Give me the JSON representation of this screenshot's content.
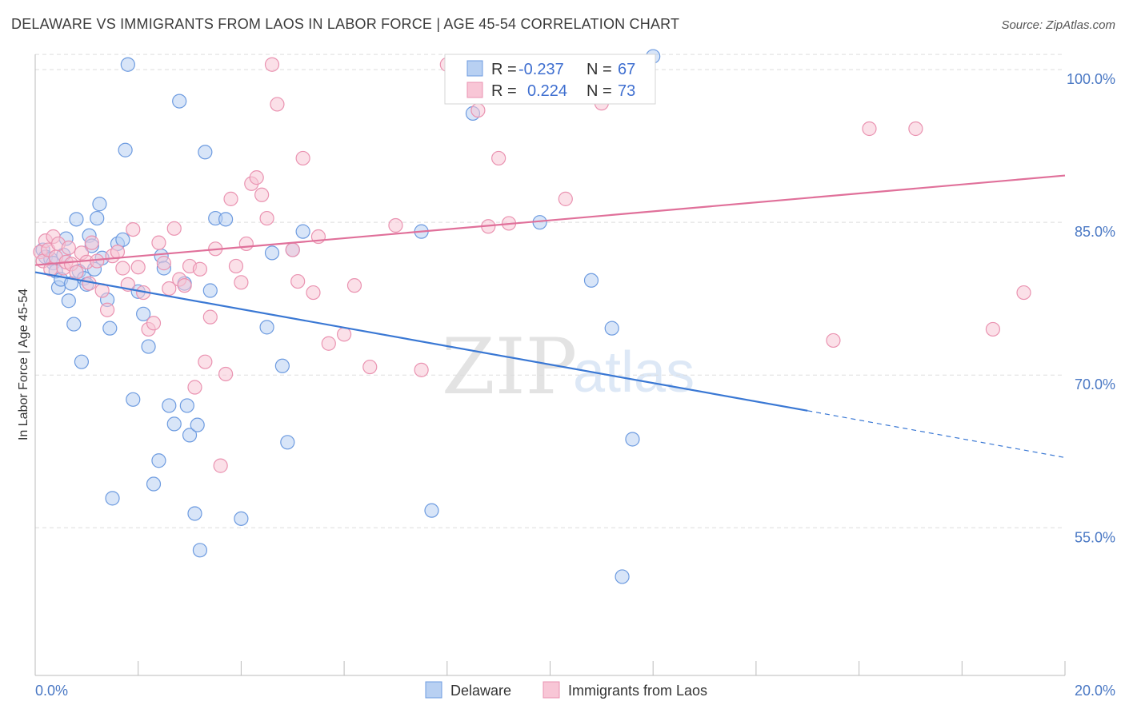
{
  "header": {
    "title": "DELAWARE VS IMMIGRANTS FROM LAOS IN LABOR FORCE | AGE 45-54 CORRELATION CHART",
    "source": "Source: ZipAtlas.com"
  },
  "watermark": {
    "zip": "ZIP",
    "atlas": "atlas"
  },
  "legend": {
    "delaware": {
      "r_label": "R =",
      "r_value": "-0.237",
      "n_label": "N =",
      "n_value": "67"
    },
    "laos": {
      "r_label": "R =",
      "r_value": "0.224",
      "n_label": "N =",
      "n_value": "73"
    }
  },
  "bottom_legend": {
    "delaware": "Delaware",
    "laos": "Immigrants from Laos"
  },
  "colors": {
    "delaware_fill": "#b8d0f2",
    "delaware_stroke": "#6d9be0",
    "delaware_line": "#3a78d4",
    "laos_fill": "#f8c6d6",
    "laos_stroke": "#ea93b1",
    "laos_line": "#e0709a",
    "tick_text": "#4a78c4",
    "grid": "#dddddd"
  },
  "chart_data": {
    "type": "scatter",
    "title": "DELAWARE VS IMMIGRANTS FROM LAOS IN LABOR FORCE | AGE 45-54 CORRELATION CHART",
    "xlabel": "",
    "ylabel": "In Labor Force | Age 45-54",
    "xlim": [
      0,
      20
    ],
    "ylim": [
      40.5,
      101.5
    ],
    "x_tick_labels": [
      "0.0%",
      "20.0%"
    ],
    "y_ticks": [
      55,
      70,
      85,
      100
    ],
    "y_tick_labels": [
      "55.0%",
      "70.0%",
      "85.0%",
      "100.0%"
    ],
    "grid": true,
    "legend_position": "top-center",
    "series": [
      {
        "name": "Delaware",
        "points": [
          [
            0.15,
            82.3
          ],
          [
            0.2,
            81.6
          ],
          [
            0.3,
            81.4
          ],
          [
            0.35,
            81.0
          ],
          [
            0.4,
            80.2
          ],
          [
            0.45,
            78.6
          ],
          [
            0.5,
            79.4
          ],
          [
            0.55,
            81.8
          ],
          [
            0.6,
            83.4
          ],
          [
            0.65,
            77.3
          ],
          [
            0.7,
            79.0
          ],
          [
            0.75,
            75.0
          ],
          [
            0.8,
            85.3
          ],
          [
            0.85,
            80.2
          ],
          [
            0.9,
            71.3
          ],
          [
            0.95,
            79.5
          ],
          [
            1.0,
            78.9
          ],
          [
            1.05,
            83.7
          ],
          [
            1.1,
            82.7
          ],
          [
            1.15,
            80.4
          ],
          [
            1.2,
            85.4
          ],
          [
            1.25,
            86.8
          ],
          [
            1.3,
            81.5
          ],
          [
            1.4,
            77.4
          ],
          [
            1.45,
            74.6
          ],
          [
            1.5,
            57.9
          ],
          [
            1.6,
            82.9
          ],
          [
            1.7,
            83.3
          ],
          [
            1.75,
            92.1
          ],
          [
            1.8,
            100.5
          ],
          [
            1.9,
            67.6
          ],
          [
            2.0,
            78.2
          ],
          [
            2.1,
            76.0
          ],
          [
            2.2,
            72.8
          ],
          [
            2.3,
            59.3
          ],
          [
            2.4,
            61.6
          ],
          [
            2.45,
            81.7
          ],
          [
            2.5,
            80.5
          ],
          [
            2.6,
            67.0
          ],
          [
            2.7,
            65.2
          ],
          [
            2.8,
            96.9
          ],
          [
            2.9,
            79.0
          ],
          [
            2.95,
            67.0
          ],
          [
            3.0,
            64.1
          ],
          [
            3.1,
            56.4
          ],
          [
            3.15,
            65.1
          ],
          [
            3.2,
            52.8
          ],
          [
            3.3,
            91.9
          ],
          [
            3.4,
            78.3
          ],
          [
            3.5,
            85.4
          ],
          [
            3.7,
            85.3
          ],
          [
            4.0,
            55.9
          ],
          [
            4.5,
            74.7
          ],
          [
            4.6,
            82.0
          ],
          [
            4.8,
            70.9
          ],
          [
            4.9,
            63.4
          ],
          [
            5.0,
            82.3
          ],
          [
            5.2,
            84.1
          ],
          [
            7.5,
            84.1
          ],
          [
            7.7,
            56.7
          ],
          [
            8.5,
            95.7
          ],
          [
            9.8,
            85.0
          ],
          [
            10.8,
            79.3
          ],
          [
            11.2,
            74.6
          ],
          [
            11.4,
            50.2
          ],
          [
            11.6,
            63.7
          ],
          [
            12.0,
            101.3
          ]
        ],
        "trend": {
          "x": [
            0,
            15.0
          ],
          "y": [
            80.1,
            66.5
          ],
          "dashed_to": [
            20,
            61.9
          ]
        }
      },
      {
        "name": "Immigrants from Laos",
        "points": [
          [
            0.1,
            82.1
          ],
          [
            0.15,
            81.2
          ],
          [
            0.2,
            83.2
          ],
          [
            0.25,
            82.3
          ],
          [
            0.3,
            80.4
          ],
          [
            0.35,
            83.6
          ],
          [
            0.4,
            81.6
          ],
          [
            0.45,
            82.9
          ],
          [
            0.55,
            80.5
          ],
          [
            0.6,
            81.1
          ],
          [
            0.65,
            82.5
          ],
          [
            0.7,
            80.9
          ],
          [
            0.8,
            80.1
          ],
          [
            0.9,
            82.0
          ],
          [
            1.0,
            81.1
          ],
          [
            1.05,
            79.0
          ],
          [
            1.1,
            83.0
          ],
          [
            1.2,
            81.2
          ],
          [
            1.3,
            78.3
          ],
          [
            1.4,
            76.4
          ],
          [
            1.5,
            81.7
          ],
          [
            1.6,
            82.1
          ],
          [
            1.7,
            80.5
          ],
          [
            1.8,
            78.9
          ],
          [
            1.9,
            84.3
          ],
          [
            2.0,
            80.6
          ],
          [
            2.1,
            78.1
          ],
          [
            2.2,
            74.5
          ],
          [
            2.3,
            75.1
          ],
          [
            2.4,
            83.0
          ],
          [
            2.5,
            81.0
          ],
          [
            2.6,
            78.5
          ],
          [
            2.7,
            84.4
          ],
          [
            2.8,
            79.4
          ],
          [
            2.9,
            78.8
          ],
          [
            3.0,
            80.7
          ],
          [
            3.1,
            68.8
          ],
          [
            3.2,
            80.4
          ],
          [
            3.3,
            71.3
          ],
          [
            3.4,
            75.7
          ],
          [
            3.5,
            82.4
          ],
          [
            3.6,
            61.1
          ],
          [
            3.7,
            70.1
          ],
          [
            3.8,
            87.3
          ],
          [
            3.9,
            80.7
          ],
          [
            4.0,
            79.1
          ],
          [
            4.1,
            82.9
          ],
          [
            4.2,
            88.8
          ],
          [
            4.3,
            89.4
          ],
          [
            4.4,
            87.7
          ],
          [
            4.5,
            85.4
          ],
          [
            4.6,
            100.5
          ],
          [
            4.7,
            96.6
          ],
          [
            5.0,
            82.3
          ],
          [
            5.1,
            79.2
          ],
          [
            5.2,
            91.3
          ],
          [
            5.4,
            78.1
          ],
          [
            5.5,
            83.6
          ],
          [
            5.7,
            73.1
          ],
          [
            6.0,
            74.0
          ],
          [
            6.2,
            78.8
          ],
          [
            6.5,
            70.8
          ],
          [
            7.0,
            84.7
          ],
          [
            7.5,
            70.5
          ],
          [
            8.0,
            100.5
          ],
          [
            8.4,
            100.5
          ],
          [
            8.6,
            96.0
          ],
          [
            8.8,
            84.6
          ],
          [
            9.0,
            91.3
          ],
          [
            9.2,
            84.9
          ],
          [
            10.3,
            87.3
          ],
          [
            15.5,
            73.4
          ],
          [
            16.2,
            94.2
          ],
          [
            17.1,
            94.2
          ],
          [
            18.6,
            74.5
          ],
          [
            19.2,
            78.1
          ],
          [
            11.0,
            96.7
          ]
        ],
        "trend": {
          "x": [
            0,
            20
          ],
          "y": [
            80.8,
            89.6
          ]
        }
      }
    ]
  }
}
